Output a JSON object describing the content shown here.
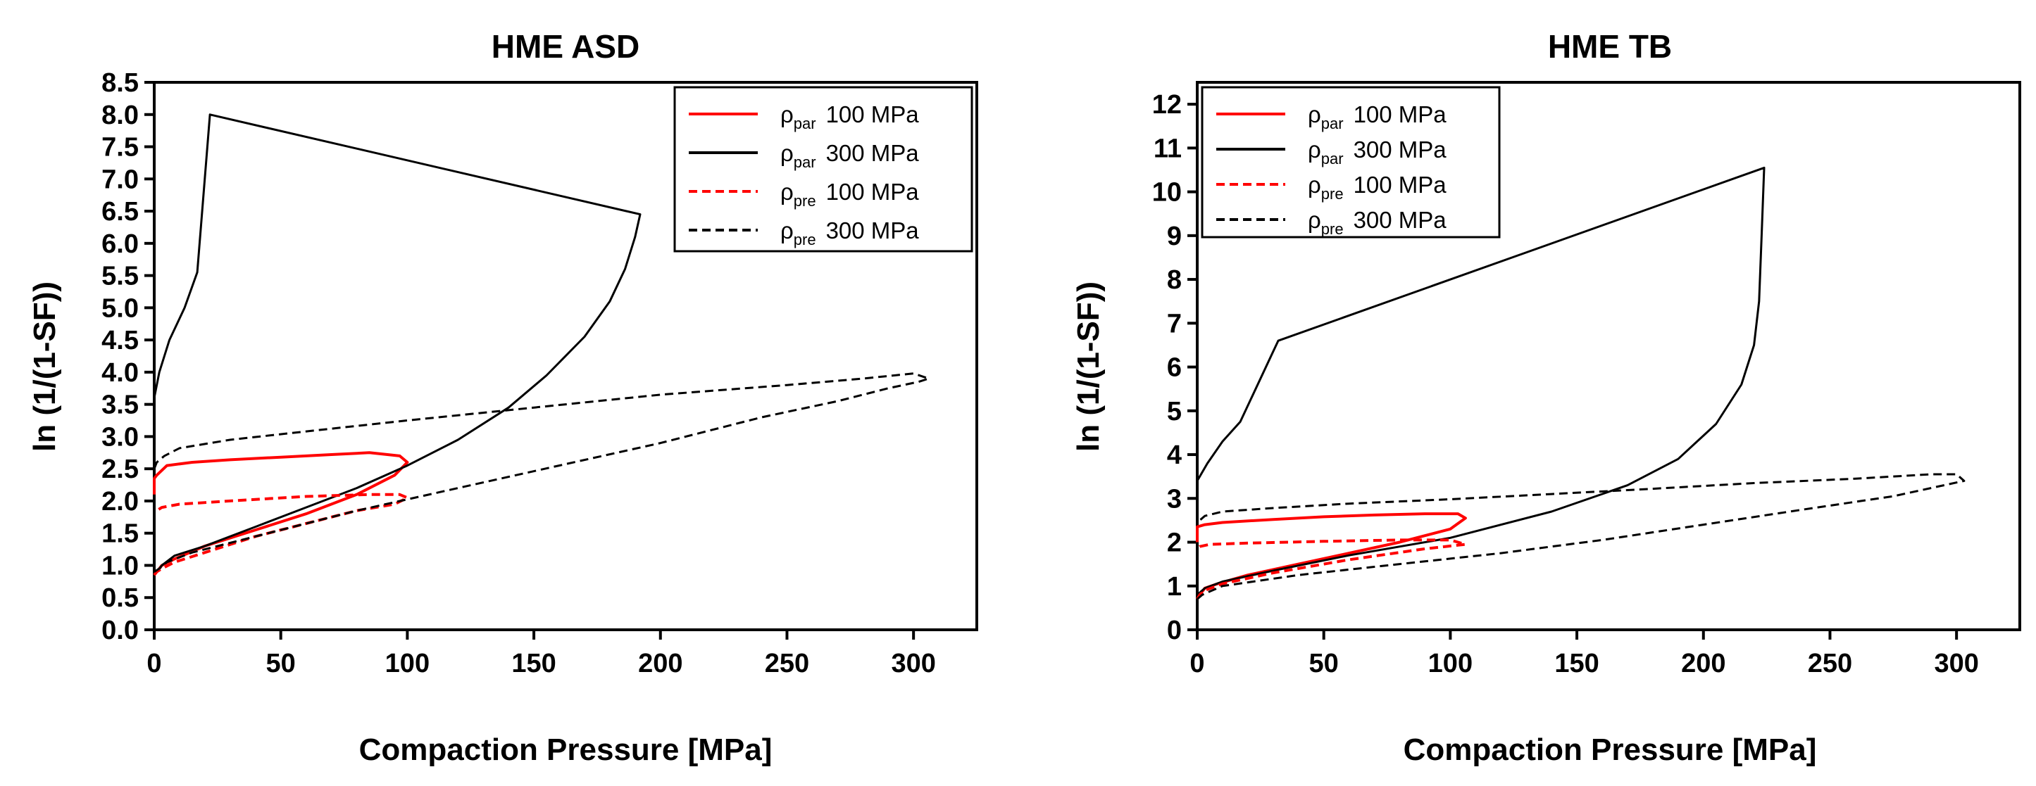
{
  "chart_data": [
    {
      "type": "line",
      "title": "HME ASD",
      "xlabel": "Compaction Pressure [MPa]",
      "ylabel": "ln (1/(1-SF))",
      "xlim": [
        0,
        325
      ],
      "ylim": [
        0,
        8.5
      ],
      "xticks": [
        0,
        50,
        100,
        150,
        200,
        250,
        300
      ],
      "xtick_labels": [
        "0",
        "50",
        "100",
        "150",
        "200",
        "250",
        "300"
      ],
      "yticks": [
        0,
        0.5,
        1,
        1.5,
        2,
        2.5,
        3,
        3.5,
        4,
        4.5,
        5,
        5.5,
        6,
        6.5,
        7,
        7.5,
        8,
        8.5
      ],
      "ytick_labels": [
        "0.0",
        "0.5",
        "1.0",
        "1.5",
        "2.0",
        "2.5",
        "3.0",
        "3.5",
        "4.0",
        "4.5",
        "5.0",
        "5.5",
        "6.0",
        "6.5",
        "7.0",
        "7.5",
        "8.0",
        "8.5"
      ],
      "legend_position": "top-right",
      "series": [
        {
          "name": "ρpar 100 MPa",
          "symbol": "ρ",
          "subscript": "par",
          "label_suffix": "100 MPa",
          "color": "#ff0000",
          "dash": "solid",
          "x": [
            0,
            1,
            3,
            8,
            20,
            40,
            60,
            80,
            95,
            100,
            97,
            85,
            70,
            50,
            30,
            15,
            5,
            1,
            0,
            0
          ],
          "y": [
            0.85,
            0.9,
            1.0,
            1.1,
            1.3,
            1.55,
            1.8,
            2.1,
            2.4,
            2.6,
            2.7,
            2.75,
            2.72,
            2.68,
            2.64,
            2.6,
            2.55,
            2.4,
            2.35,
            2.1
          ]
        },
        {
          "name": "ρpar 300 MPa",
          "symbol": "ρ",
          "subscript": "par",
          "label_suffix": "300 MPa",
          "color": "#000000",
          "dash": "solid",
          "x": [
            0,
            1,
            3,
            8,
            20,
            40,
            60,
            80,
            100,
            120,
            140,
            155,
            170,
            180,
            186,
            190,
            192,
            22,
            17,
            12,
            6,
            2,
            0
          ],
          "y": [
            0.85,
            0.9,
            1.0,
            1.15,
            1.3,
            1.6,
            1.9,
            2.2,
            2.55,
            2.95,
            3.45,
            3.95,
            4.55,
            5.1,
            5.6,
            6.1,
            6.45,
            8.0,
            5.55,
            5.0,
            4.5,
            4.0,
            3.6
          ]
        },
        {
          "name": "ρpre 100 MPa",
          "symbol": "ρ",
          "subscript": "pre",
          "label_suffix": "100 MPa",
          "color": "#ff0000",
          "dash": "dashed",
          "x": [
            0,
            1,
            3,
            8,
            20,
            40,
            60,
            80,
            95,
            100,
            97,
            85,
            60,
            30,
            10,
            3,
            1,
            0
          ],
          "y": [
            0.85,
            0.9,
            0.95,
            1.05,
            1.2,
            1.45,
            1.65,
            1.85,
            1.95,
            2.05,
            2.1,
            2.1,
            2.07,
            2.0,
            1.95,
            1.9,
            1.85,
            1.85
          ]
        },
        {
          "name": "ρpre 300 MPa",
          "symbol": "ρ",
          "subscript": "pre",
          "label_suffix": "300 MPa",
          "color": "#000000",
          "dash": "dashed",
          "x": [
            0,
            2,
            5,
            15,
            40,
            80,
            120,
            160,
            200,
            240,
            270,
            290,
            302,
            306,
            300,
            280,
            250,
            200,
            150,
            100,
            60,
            30,
            10,
            4,
            1,
            0
          ],
          "y": [
            0.9,
            0.95,
            1.05,
            1.2,
            1.45,
            1.85,
            2.2,
            2.55,
            2.9,
            3.3,
            3.55,
            3.75,
            3.85,
            3.9,
            3.98,
            3.9,
            3.8,
            3.65,
            3.45,
            3.25,
            3.08,
            2.95,
            2.82,
            2.7,
            2.6,
            2.5
          ]
        }
      ]
    },
    {
      "type": "line",
      "title": "HME TB",
      "xlabel": "Compaction Pressure [MPa]",
      "ylabel": "ln (1/(1-SF))",
      "xlim": [
        0,
        325
      ],
      "ylim": [
        0,
        12.5
      ],
      "xticks": [
        0,
        50,
        100,
        150,
        200,
        250,
        300
      ],
      "xtick_labels": [
        "0",
        "50",
        "100",
        "150",
        "200",
        "250",
        "300"
      ],
      "yticks": [
        0,
        1,
        2,
        3,
        4,
        5,
        6,
        7,
        8,
        9,
        10,
        11,
        12
      ],
      "ytick_labels": [
        "0",
        "1",
        "2",
        "3",
        "4",
        "5",
        "6",
        "7",
        "8",
        "9",
        "10",
        "11",
        "12"
      ],
      "legend_position": "top-left",
      "series": [
        {
          "name": "ρpar 100 MPa",
          "symbol": "ρ",
          "subscript": "par",
          "label_suffix": "100 MPa",
          "color": "#ff0000",
          "dash": "solid",
          "x": [
            0,
            1,
            3,
            8,
            20,
            40,
            60,
            80,
            100,
            106,
            103,
            90,
            70,
            50,
            30,
            10,
            3,
            0,
            0
          ],
          "y": [
            0.7,
            0.8,
            0.95,
            1.05,
            1.25,
            1.5,
            1.75,
            2.0,
            2.3,
            2.55,
            2.65,
            2.65,
            2.62,
            2.58,
            2.52,
            2.45,
            2.4,
            2.35,
            2.0
          ]
        },
        {
          "name": "ρpar 300 MPa",
          "symbol": "ρ",
          "subscript": "par",
          "label_suffix": "300 MPa",
          "color": "#000000",
          "dash": "solid",
          "x": [
            0,
            1,
            3,
            10,
            30,
            60,
            100,
            140,
            170,
            190,
            205,
            215,
            220,
            222,
            223,
            224,
            32,
            17,
            10,
            4,
            0
          ],
          "y": [
            0.75,
            0.85,
            0.95,
            1.1,
            1.35,
            1.7,
            2.1,
            2.7,
            3.3,
            3.9,
            4.7,
            5.6,
            6.5,
            7.5,
            9.0,
            10.55,
            6.6,
            4.75,
            4.3,
            3.8,
            3.4
          ]
        },
        {
          "name": "ρpre 100 MPa",
          "symbol": "ρ",
          "subscript": "pre",
          "label_suffix": "100 MPa",
          "color": "#ff0000",
          "dash": "dashed",
          "x": [
            0,
            1,
            3,
            10,
            30,
            60,
            90,
            106,
            100,
            80,
            50,
            20,
            5,
            1,
            0
          ],
          "y": [
            0.7,
            0.8,
            0.9,
            1.05,
            1.3,
            1.6,
            1.85,
            1.95,
            2.05,
            2.05,
            2.02,
            1.98,
            1.95,
            1.9,
            1.85
          ]
        },
        {
          "name": "ρpre 300 MPa",
          "symbol": "ρ",
          "subscript": "pre",
          "label_suffix": "300 MPa",
          "color": "#000000",
          "dash": "dashed",
          "x": [
            0,
            2,
            10,
            40,
            80,
            120,
            160,
            200,
            240,
            275,
            295,
            303,
            300,
            290,
            260,
            220,
            180,
            140,
            100,
            60,
            30,
            10,
            3,
            0
          ],
          "y": [
            0.7,
            0.8,
            1.0,
            1.25,
            1.5,
            1.75,
            2.05,
            2.4,
            2.75,
            3.05,
            3.3,
            3.4,
            3.55,
            3.55,
            3.45,
            3.35,
            3.22,
            3.1,
            2.98,
            2.88,
            2.78,
            2.7,
            2.6,
            2.45
          ]
        }
      ]
    }
  ]
}
